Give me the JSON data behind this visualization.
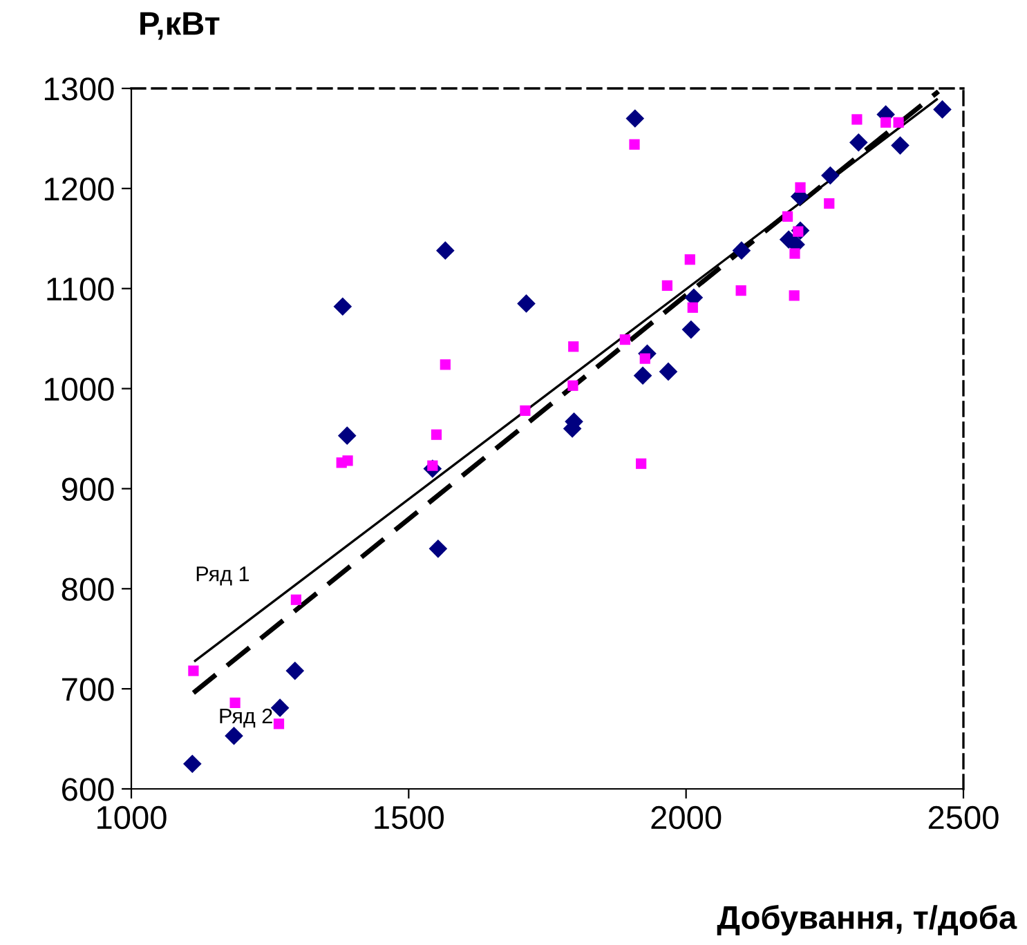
{
  "chart_data": {
    "type": "scatter",
    "xlabel": "Добування, т/доба",
    "ylabel": "P,кВт",
    "xlim": [
      1000,
      2500
    ],
    "ylim": [
      600,
      1300
    ],
    "xticks": [
      1000,
      1500,
      2000,
      2500
    ],
    "yticks": [
      600,
      700,
      800,
      900,
      1000,
      1100,
      1200,
      1300
    ],
    "grid": false,
    "legend": false,
    "series": [
      {
        "marker": "diamond",
        "color": "#000080",
        "x": [
          1110,
          1185,
          1268,
          1295,
          1381,
          1389,
          1566,
          1553,
          1712,
          1543,
          1908,
          2360,
          2462,
          2311,
          2386,
          2260,
          2205,
          2100,
          2185,
          2198,
          2206,
          2014,
          2009,
          1930,
          1922,
          1968,
          1798,
          1795
        ],
        "values": [
          625,
          653,
          681,
          718,
          1082,
          953,
          1138,
          840,
          1085,
          920,
          1270,
          1274,
          1279,
          1246,
          1243,
          1213,
          1192,
          1138,
          1149,
          1144,
          1158,
          1091,
          1059,
          1035,
          1013,
          1017,
          967,
          960
        ]
      },
      {
        "marker": "square",
        "color": "#ff00ff",
        "x": [
          1566,
          1550,
          1710,
          1112,
          1187,
          1266,
          1297,
          1379,
          1390,
          1543,
          1907,
          2308,
          2360,
          2383,
          2206,
          2258,
          2183,
          2202,
          2196,
          2195,
          2099,
          2007,
          1966,
          2012,
          1890,
          1797,
          1796,
          1926,
          1919
        ],
        "values": [
          1024,
          954,
          978,
          718,
          686,
          665,
          789,
          926,
          928,
          923,
          1244,
          1269,
          1266,
          1266,
          1201,
          1185,
          1172,
          1157,
          1135,
          1093,
          1098,
          1129,
          1103,
          1081,
          1049,
          1042,
          1003,
          1030,
          925
        ]
      },
      {
        "type": "line",
        "name": "Ряд 1",
        "line_style": "solid",
        "color": "#000000",
        "x": [
          1115,
          2452
        ],
        "values": [
          728,
          1289
        ]
      },
      {
        "type": "line",
        "name": "Ряд 2",
        "line_style": "dashed",
        "color": "#000000",
        "x": [
          1112,
          2455
        ],
        "values": [
          696,
          1297
        ]
      }
    ]
  }
}
